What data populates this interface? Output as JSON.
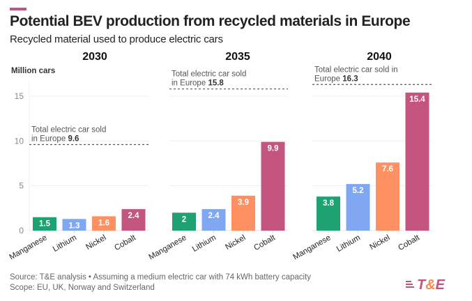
{
  "header": {
    "title": "Potential BEV production from recycled materials in Europe",
    "subtitle": "Recycled material used to produce electric cars",
    "accent_color": "#c4527f"
  },
  "footer": {
    "source": "Source: T&E analysis • Assuming a medium electric car with 74 kWh battery capacity",
    "scope": "Scope: EU, UK, Norway and Switzerland"
  },
  "logo": {
    "t": "T",
    "amp": "&",
    "e": "E"
  },
  "chart_data": {
    "type": "bar",
    "title": "Potential BEV production from recycled materials in Europe",
    "subtitle": "Recycled material used to produce electric cars",
    "ylabel": "Million cars",
    "xlabel": "",
    "ylim": [
      0,
      17
    ],
    "yticks": [
      0,
      5,
      10,
      15
    ],
    "grid": true,
    "categories": [
      "Manganese",
      "Lithium",
      "Nickel",
      "Cobalt"
    ],
    "colors": {
      "Manganese": "#1fa271",
      "Lithium": "#80a8f2",
      "Nickel": "#fe9061",
      "Cobalt": "#c4557f"
    },
    "panels": [
      {
        "year": "2030",
        "values": [
          1.5,
          1.3,
          1.6,
          2.4
        ],
        "labels": [
          "1.5",
          "1.3",
          "1.6",
          "2.4"
        ],
        "reference": {
          "value": 9.6,
          "text": "Total electric car sold",
          "text2": "in Europe ",
          "value_label": "9.6"
        }
      },
      {
        "year": "2035",
        "values": [
          2.0,
          2.4,
          3.9,
          9.9
        ],
        "labels": [
          "2",
          "2.4",
          "3.9",
          "9.9"
        ],
        "reference": {
          "value": 15.8,
          "text": "Total electric car sold",
          "text2": "in Europe ",
          "value_label": "15.8"
        }
      },
      {
        "year": "2040",
        "values": [
          3.8,
          5.2,
          7.6,
          15.4
        ],
        "labels": [
          "3.8",
          "5.2",
          "7.6",
          "15.4"
        ],
        "reference": {
          "value": 16.3,
          "text": "Total electric car sold in",
          "text2": "Europe ",
          "value_label": "16.3"
        }
      }
    ]
  }
}
